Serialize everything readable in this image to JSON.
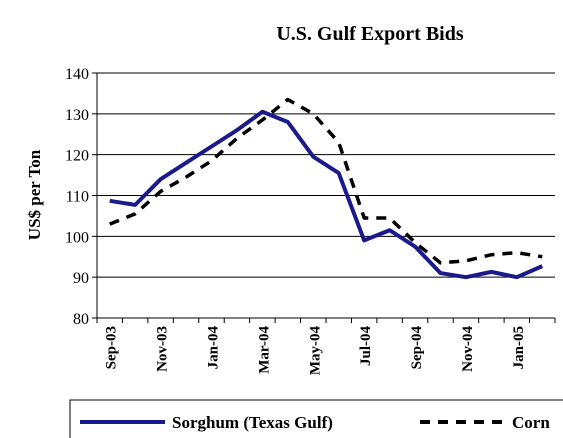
{
  "chart_data": {
    "type": "line",
    "title": "U.S. Gulf Export Bids",
    "y_label": "US$ per Ton",
    "categories": [
      "Sep-03",
      null,
      "Nov-03",
      null,
      "Jan-04",
      null,
      "Mar-04",
      null,
      "May-04",
      null,
      "Jul-04",
      null,
      "Sep-04",
      null,
      "Nov-04",
      null,
      "Jan-05",
      null
    ],
    "series": [
      {
        "name": "Sorghum (Texas Gulf)",
        "color": "#1a1a8c",
        "dash": "solid",
        "values": [
          108.7,
          107.7,
          114,
          118,
          122,
          126,
          130.5,
          128,
          119.5,
          115.5,
          99,
          101.5,
          97.5,
          91,
          90,
          91.3,
          90,
          92.7
        ]
      },
      {
        "name": "Corn",
        "color": "#000000",
        "dash": "dashed",
        "values": [
          103,
          105.5,
          111,
          114.5,
          118.5,
          124,
          128.5,
          133.5,
          130,
          123,
          104.5,
          104.5,
          98.5,
          93.5,
          94,
          95.5,
          96,
          95
        ]
      }
    ],
    "ylim": [
      80,
      140
    ],
    "yticks": [
      80,
      90,
      100,
      110,
      120,
      130,
      140
    ],
    "grid": true,
    "legend": "bottom"
  }
}
